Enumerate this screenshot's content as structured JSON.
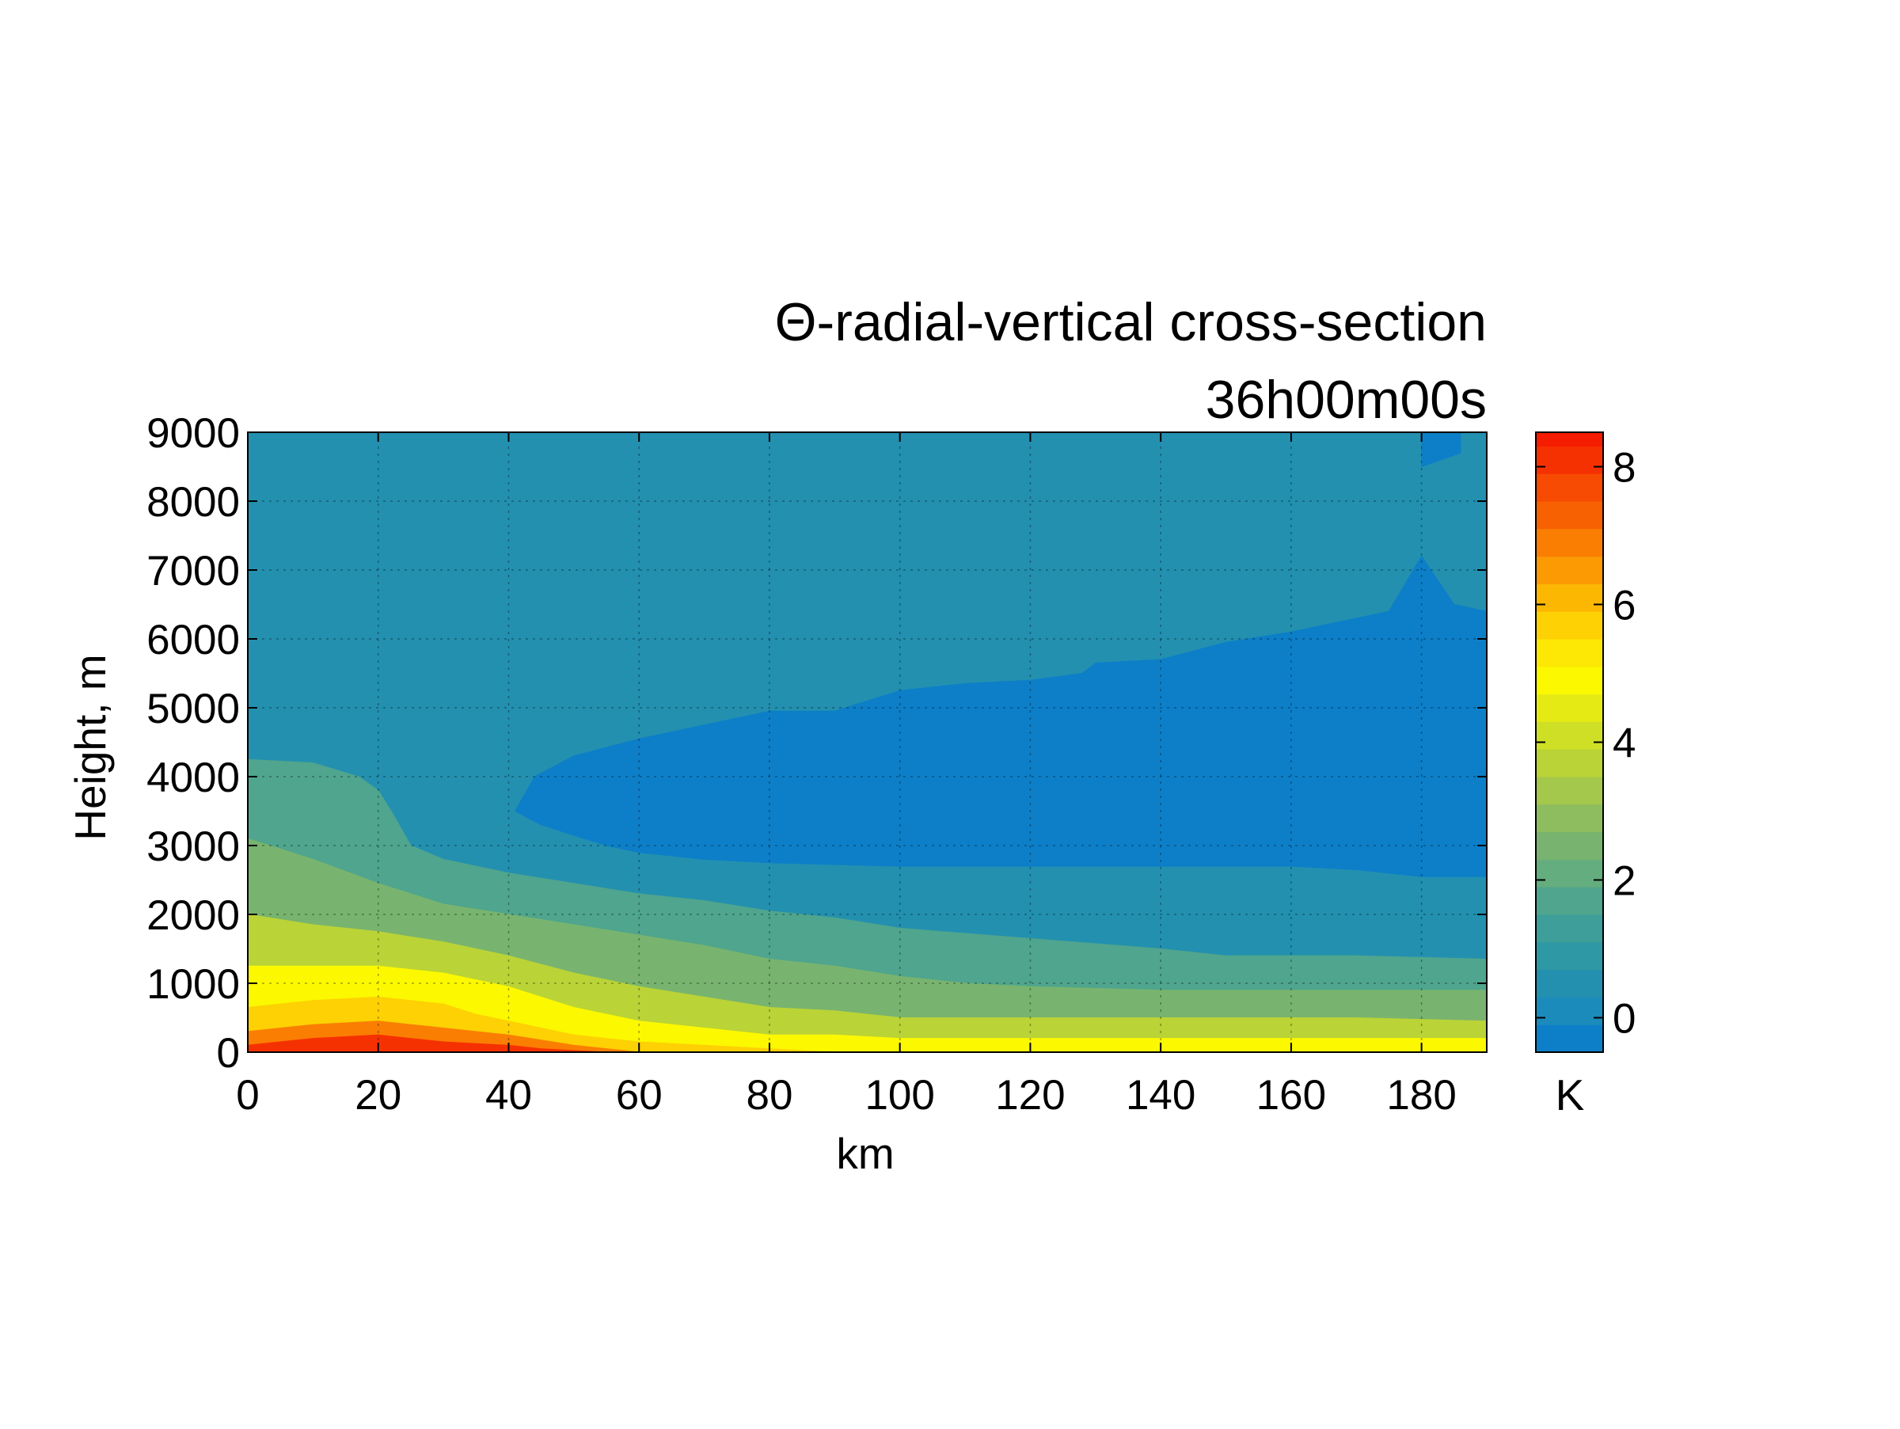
{
  "chart_data": {
    "type": "heatmap",
    "subtype": "filled-contour",
    "title": "Θ-radial-vertical cross-section",
    "subtitle": "36h00m00s",
    "xlabel": "km",
    "ylabel": "Height, m",
    "xlim": [
      0,
      190
    ],
    "ylim": [
      0,
      9000
    ],
    "x_ticks": [
      "0",
      "20",
      "40",
      "60",
      "80",
      "100",
      "120",
      "140",
      "160",
      "180"
    ],
    "y_ticks": [
      "0",
      "1000",
      "2000",
      "3000",
      "4000",
      "5000",
      "6000",
      "7000",
      "8000",
      "9000"
    ],
    "grid": true,
    "colorbar": {
      "label": "K",
      "range": [
        -0.5,
        8.5
      ],
      "ticks": [
        "0",
        "2",
        "4",
        "6",
        "8"
      ],
      "levels": [
        -0.5,
        -0.1,
        0.3,
        0.7,
        1.1,
        1.5,
        1.9,
        2.3,
        2.7,
        3.1,
        3.5,
        3.9,
        4.3,
        4.7,
        5.1,
        5.5,
        5.9,
        6.3,
        6.7,
        7.1,
        7.5,
        7.9,
        8.3,
        8.5
      ],
      "colors": [
        "#0d7fc8",
        "#1b8bbc",
        "#2390b0",
        "#2f98a5",
        "#3d9e9a",
        "#4fa58d",
        "#64ad7e",
        "#78b46f",
        "#8dbd5f",
        "#a4c84b",
        "#bad336",
        "#cfdf26",
        "#e5ea14",
        "#fbf800",
        "#fde704",
        "#fdd103",
        "#fcb703",
        "#fb9a03",
        "#fa7e02",
        "#f86102",
        "#f74a02",
        "#f63101",
        "#f51c00",
        "#fb0000"
      ]
    },
    "contour_regions": [
      {
        "label": "Θ anomaly ≈ 0.1 K (background)",
        "color": "#2390b0",
        "boundary_km_m": [
          [
            0,
            0
          ],
          [
            190,
            0
          ],
          [
            190,
            9000
          ],
          [
            0,
            9000
          ]
        ]
      },
      {
        "label": "Θ anomaly < 0 K (upper-right, near 180 km)",
        "color": "#0d7fc8",
        "boundary_km_m": [
          [
            180,
            8500
          ],
          [
            186,
            8700
          ],
          [
            186,
            9000
          ],
          [
            180,
            9000
          ]
        ]
      },
      {
        "label": "Θ anomaly < 0 K (mid-level minimum)",
        "color": "#0d7fc8",
        "boundary_km_m": [
          [
            41,
            3500
          ],
          [
            44,
            4000
          ],
          [
            50,
            4300
          ],
          [
            60,
            4550
          ],
          [
            70,
            4750
          ],
          [
            80,
            4950
          ],
          [
            90,
            4950
          ],
          [
            100,
            5250
          ],
          [
            110,
            5350
          ],
          [
            120,
            5400
          ],
          [
            128,
            5500
          ],
          [
            130,
            5650
          ],
          [
            140,
            5700
          ],
          [
            150,
            5950
          ],
          [
            160,
            6100
          ],
          [
            175,
            6400
          ],
          [
            180,
            7200
          ],
          [
            185,
            6500
          ],
          [
            190,
            6400
          ],
          [
            190,
            2550
          ],
          [
            180,
            2550
          ],
          [
            170,
            2650
          ],
          [
            160,
            2700
          ],
          [
            140,
            2700
          ],
          [
            120,
            2700
          ],
          [
            100,
            2700
          ],
          [
            80,
            2750
          ],
          [
            70,
            2800
          ],
          [
            60,
            2900
          ],
          [
            55,
            3000
          ],
          [
            50,
            3150
          ],
          [
            45,
            3300
          ]
        ]
      },
      {
        "label": "Θ anomaly ≈ 1 K",
        "color": "#4fa58d",
        "boundary_km_m": [
          [
            0,
            0
          ],
          [
            190,
            0
          ],
          [
            190,
            1350
          ],
          [
            170,
            1400
          ],
          [
            150,
            1400
          ],
          [
            140,
            1500
          ],
          [
            120,
            1650
          ],
          [
            100,
            1800
          ],
          [
            90,
            1950
          ],
          [
            80,
            2050
          ],
          [
            70,
            2200
          ],
          [
            60,
            2300
          ],
          [
            50,
            2450
          ],
          [
            40,
            2600
          ],
          [
            30,
            2800
          ],
          [
            25,
            3000
          ],
          [
            22,
            3500
          ],
          [
            20,
            3800
          ],
          [
            17,
            4000
          ],
          [
            10,
            4200
          ],
          [
            0,
            4250
          ]
        ]
      },
      {
        "label": "Θ anomaly ≈ 2 K",
        "color": "#78b46f",
        "boundary_km_m": [
          [
            0,
            0
          ],
          [
            190,
            0
          ],
          [
            190,
            900
          ],
          [
            170,
            900
          ],
          [
            150,
            900
          ],
          [
            140,
            900
          ],
          [
            120,
            950
          ],
          [
            110,
            1000
          ],
          [
            100,
            1100
          ],
          [
            90,
            1250
          ],
          [
            80,
            1350
          ],
          [
            70,
            1550
          ],
          [
            60,
            1700
          ],
          [
            50,
            1850
          ],
          [
            40,
            2000
          ],
          [
            30,
            2150
          ],
          [
            20,
            2450
          ],
          [
            10,
            2800
          ],
          [
            0,
            3100
          ]
        ]
      },
      {
        "label": "Θ anomaly ≈ 3 K",
        "color": "#bad336",
        "boundary_km_m": [
          [
            0,
            0
          ],
          [
            190,
            0
          ],
          [
            190,
            450
          ],
          [
            170,
            500
          ],
          [
            150,
            500
          ],
          [
            120,
            500
          ],
          [
            100,
            500
          ],
          [
            90,
            600
          ],
          [
            80,
            650
          ],
          [
            70,
            800
          ],
          [
            60,
            950
          ],
          [
            50,
            1150
          ],
          [
            40,
            1400
          ],
          [
            30,
            1600
          ],
          [
            20,
            1750
          ],
          [
            10,
            1850
          ],
          [
            0,
            2000
          ]
        ]
      },
      {
        "label": "Θ anomaly ≈ 4 K",
        "color": "#fbf800",
        "boundary_km_m": [
          [
            0,
            0
          ],
          [
            190,
            0
          ],
          [
            190,
            200
          ],
          [
            160,
            200
          ],
          [
            140,
            200
          ],
          [
            120,
            200
          ],
          [
            100,
            200
          ],
          [
            90,
            250
          ],
          [
            80,
            250
          ],
          [
            70,
            350
          ],
          [
            60,
            450
          ],
          [
            50,
            650
          ],
          [
            40,
            950
          ],
          [
            35,
            1050
          ],
          [
            30,
            1150
          ],
          [
            20,
            1250
          ],
          [
            10,
            1250
          ],
          [
            0,
            1250
          ]
        ]
      },
      {
        "label": "Θ anomaly ≈ 5 K",
        "color": "#fdd103",
        "boundary_km_m": [
          [
            0,
            0
          ],
          [
            90,
            0
          ],
          [
            80,
            50
          ],
          [
            70,
            100
          ],
          [
            60,
            150
          ],
          [
            50,
            250
          ],
          [
            40,
            450
          ],
          [
            35,
            550
          ],
          [
            30,
            700
          ],
          [
            20,
            800
          ],
          [
            10,
            750
          ],
          [
            0,
            650
          ]
        ]
      },
      {
        "label": "Θ anomaly ≈ 6 K",
        "color": "#fa7e02",
        "boundary_km_m": [
          [
            0,
            0
          ],
          [
            60,
            0
          ],
          [
            50,
            100
          ],
          [
            40,
            250
          ],
          [
            30,
            350
          ],
          [
            20,
            450
          ],
          [
            10,
            400
          ],
          [
            0,
            300
          ]
        ]
      },
      {
        "label": "Θ anomaly ≈ 7 K (maximum near surface)",
        "color": "#f63101",
        "boundary_km_m": [
          [
            0,
            0
          ],
          [
            55,
            0
          ],
          [
            45,
            50
          ],
          [
            40,
            100
          ],
          [
            30,
            150
          ],
          [
            20,
            250
          ],
          [
            10,
            200
          ],
          [
            0,
            100
          ]
        ]
      }
    ]
  }
}
